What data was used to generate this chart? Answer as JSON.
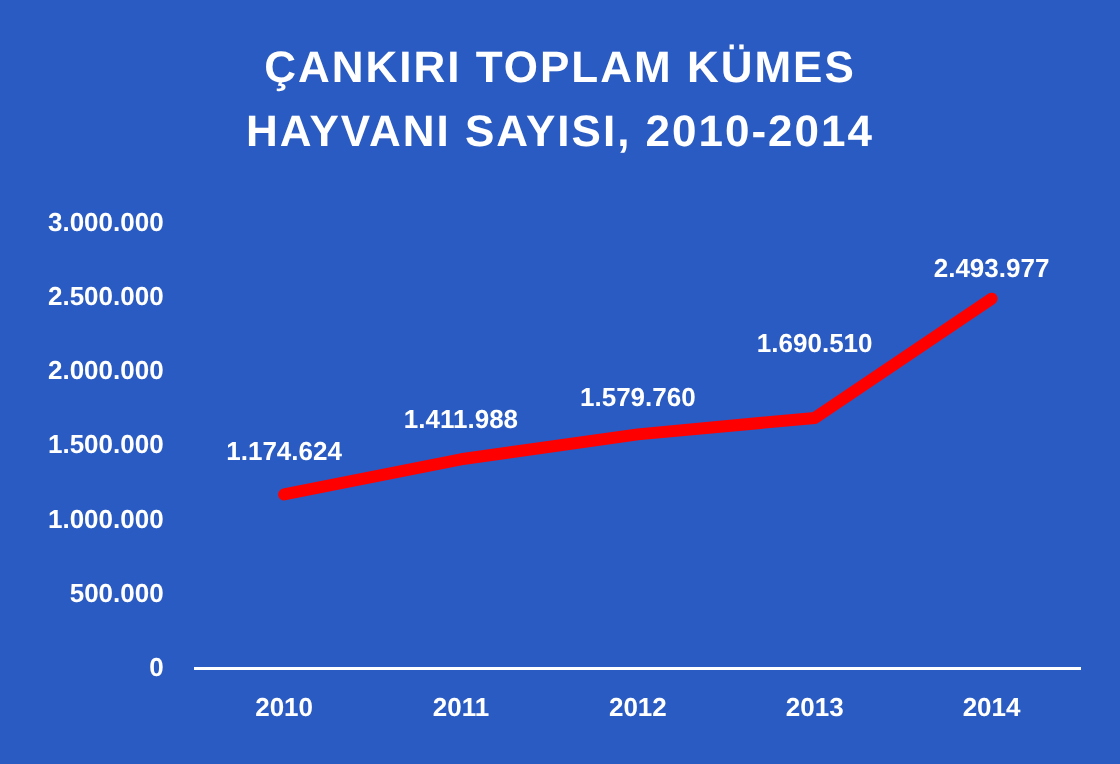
{
  "chart_data": {
    "type": "line",
    "title": "ÇANKIRI TOPLAM KÜMES HAYVANI SAYISI, 2010-2014",
    "categories": [
      "2010",
      "2011",
      "2012",
      "2013",
      "2014"
    ],
    "values": [
      1174624,
      1411988,
      1579760,
      1690510,
      2493977
    ],
    "value_labels": [
      "1.174.624",
      "1.411.988",
      "1.579.760",
      "1.690.510",
      "2.493.977"
    ],
    "color": "#ff0000",
    "ylim": [
      0,
      3000000
    ],
    "yticks": [
      {
        "value": 0,
        "label": "0"
      },
      {
        "value": 500000,
        "label": "500.000"
      },
      {
        "value": 1000000,
        "label": "1.000.000"
      },
      {
        "value": 1500000,
        "label": "1.500.000"
      },
      {
        "value": 2000000,
        "label": "2.000.000"
      },
      {
        "value": 2500000,
        "label": "2.500.000"
      },
      {
        "value": 3000000,
        "label": "3.000.000"
      }
    ],
    "grid": false,
    "legend": false,
    "marker": "none",
    "line_style": "solid"
  }
}
